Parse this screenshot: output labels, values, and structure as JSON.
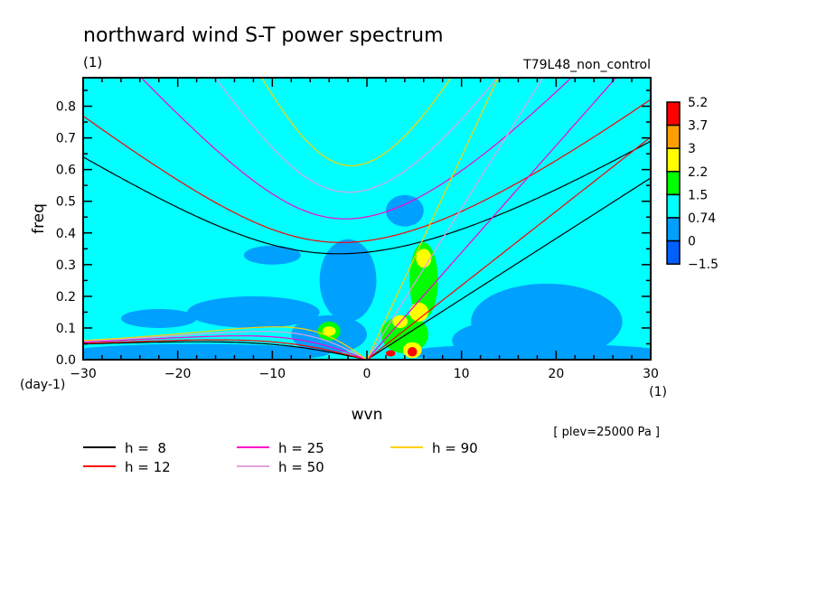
{
  "chart_data": {
    "type": "heatmap",
    "title": "northward wind S-T power spectrum",
    "subtitle_left": "(1)",
    "subtitle_right": "T79L48_non_control",
    "xlabel": "wvn",
    "ylabel": "freq",
    "x_unit": "(1)",
    "y_unit": "(day-1)",
    "xlim": [
      -30,
      30
    ],
    "ylim": [
      0,
      0.89
    ],
    "xticks": [
      -30,
      -20,
      -10,
      0,
      10,
      20,
      30
    ],
    "xtick_labels": [
      "−30",
      "−20",
      "−10",
      "0",
      "10",
      "20",
      "30"
    ],
    "yticks": [
      0,
      0.1,
      0.2,
      0.3,
      0.4,
      0.5,
      0.6,
      0.7,
      0.8
    ],
    "ytick_labels": [
      "0.0",
      "0.1",
      "0.2",
      "0.3",
      "0.4",
      "0.5",
      "0.6",
      "0.7",
      "0.8"
    ],
    "annotation": "[ plev=25000 Pa ]",
    "colorbar": {
      "levels": [
        "5.2",
        "3.7",
        "3",
        "2.2",
        "1.5",
        "0.74",
        "0",
        "−1.5"
      ],
      "colors": [
        "#ff0000",
        "#ffa000",
        "#ffff00",
        "#00ff00",
        "#00ffff",
        "#00a0ff",
        "#0060ff"
      ]
    },
    "background_level_color": "#00ffff",
    "field_features": [
      {
        "level": 1,
        "x": -18,
        "y": 0.02,
        "rx": 14,
        "ry": 0.03
      },
      {
        "level": 1,
        "x": 18,
        "y": 0.02,
        "rx": 14,
        "ry": 0.03
      },
      {
        "level": 1,
        "x": 19,
        "y": 0.12,
        "rx": 8,
        "ry": 0.12
      },
      {
        "level": 1,
        "x": 14,
        "y": 0.06,
        "rx": 5,
        "ry": 0.06
      },
      {
        "level": 1,
        "x": -12,
        "y": 0.15,
        "rx": 7,
        "ry": 0.05
      },
      {
        "level": 1,
        "x": -22,
        "y": 0.13,
        "rx": 4,
        "ry": 0.03
      },
      {
        "level": 1,
        "x": -2,
        "y": 0.25,
        "rx": 3,
        "ry": 0.13
      },
      {
        "level": 1,
        "x": -4,
        "y": 0.08,
        "rx": 4,
        "ry": 0.06
      },
      {
        "level": 1,
        "x": -10,
        "y": 0.33,
        "rx": 3,
        "ry": 0.03
      },
      {
        "level": 1,
        "x": 4,
        "y": 0.47,
        "rx": 2,
        "ry": 0.05
      },
      {
        "level": 3,
        "x": 6,
        "y": 0.25,
        "rx": 1.5,
        "ry": 0.12
      },
      {
        "level": 3,
        "x": 4,
        "y": 0.08,
        "rx": 2.5,
        "ry": 0.06
      },
      {
        "level": 3,
        "x": -4,
        "y": 0.09,
        "rx": 1.2,
        "ry": 0.03
      },
      {
        "level": 4,
        "x": 5.5,
        "y": 0.15,
        "rx": 1,
        "ry": 0.03
      },
      {
        "level": 4,
        "x": 6,
        "y": 0.32,
        "rx": 0.8,
        "ry": 0.03
      },
      {
        "level": 4,
        "x": 3.5,
        "y": 0.12,
        "rx": 0.8,
        "ry": 0.02
      },
      {
        "level": 4,
        "x": 4.8,
        "y": 0.03,
        "rx": 1,
        "ry": 0.025
      },
      {
        "level": 4,
        "x": -4,
        "y": 0.09,
        "rx": 0.7,
        "ry": 0.015
      },
      {
        "level": 6,
        "x": 4.8,
        "y": 0.025,
        "rx": 0.5,
        "ry": 0.015
      },
      {
        "level": 6,
        "x": 2.5,
        "y": 0.02,
        "rx": 0.5,
        "ry": 0.01
      }
    ],
    "dispersion_curves": {
      "description_legend": [
        {
          "label": "h =  8",
          "h": 8,
          "color": "#000000"
        },
        {
          "label": "h = 12",
          "h": 12,
          "color": "#ff0000"
        },
        {
          "label": "h = 25",
          "h": 25,
          "color": "#ff00cc"
        },
        {
          "label": "h = 50",
          "h": 50,
          "color": "#e0a0e0"
        },
        {
          "label": "h = 90",
          "h": 90,
          "color": "#ffd000"
        }
      ]
    }
  }
}
